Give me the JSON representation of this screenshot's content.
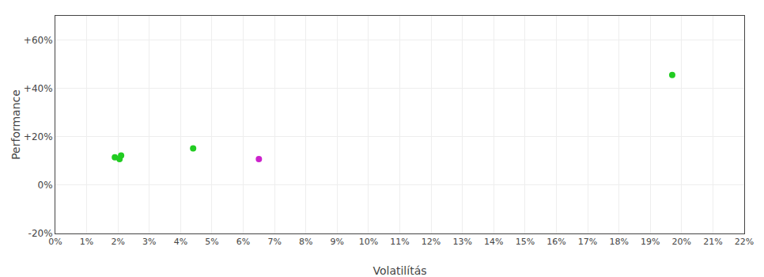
{
  "chart_data": {
    "type": "scatter",
    "xlabel": "Volatilítás",
    "ylabel": "Performance",
    "x": [
      0.019,
      0.021,
      0.0205,
      0.044,
      0.065,
      0.197
    ],
    "values": [
      0.115,
      0.122,
      0.108,
      0.152,
      0.108,
      0.455
    ],
    "colors": [
      "#22cc22",
      "#22cc22",
      "#22cc22",
      "#22cc22",
      "#cc22cc",
      "#22cc22"
    ],
    "xlim": [
      0.0,
      0.22
    ],
    "ylim": [
      -0.2,
      0.7
    ],
    "xticks": [
      {
        "value": 0.0,
        "label": "0%"
      },
      {
        "value": 0.01,
        "label": "1%"
      },
      {
        "value": 0.02,
        "label": "2%"
      },
      {
        "value": 0.03,
        "label": "3%"
      },
      {
        "value": 0.04,
        "label": "4%"
      },
      {
        "value": 0.05,
        "label": "5%"
      },
      {
        "value": 0.06,
        "label": "6%"
      },
      {
        "value": 0.07,
        "label": "7%"
      },
      {
        "value": 0.08,
        "label": "8%"
      },
      {
        "value": 0.09,
        "label": "9%"
      },
      {
        "value": 0.1,
        "label": "10%"
      },
      {
        "value": 0.11,
        "label": "11%"
      },
      {
        "value": 0.12,
        "label": "12%"
      },
      {
        "value": 0.13,
        "label": "13%"
      },
      {
        "value": 0.14,
        "label": "14%"
      },
      {
        "value": 0.15,
        "label": "15%"
      },
      {
        "value": 0.16,
        "label": "16%"
      },
      {
        "value": 0.17,
        "label": "17%"
      },
      {
        "value": 0.18,
        "label": "18%"
      },
      {
        "value": 0.19,
        "label": "19%"
      },
      {
        "value": 0.2,
        "label": "20%"
      },
      {
        "value": 0.21,
        "label": "21%"
      },
      {
        "value": 0.22,
        "label": "22%"
      }
    ],
    "yticks": [
      {
        "value": -0.2,
        "label": "-20%"
      },
      {
        "value": 0.0,
        "label": "0%"
      },
      {
        "value": 0.2,
        "label": "+20%"
      },
      {
        "value": 0.4,
        "label": "+40%"
      },
      {
        "value": 0.6,
        "label": "+60%"
      }
    ],
    "grid": true
  }
}
